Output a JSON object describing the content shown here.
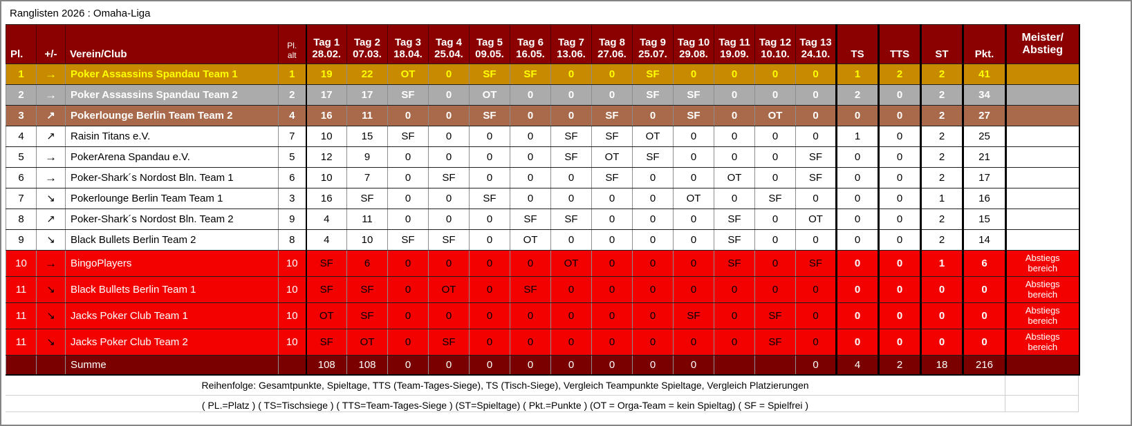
{
  "title": "Ranglisten 2026 : Omaha-Liga",
  "table": {
    "headers": {
      "pl": "Pl.",
      "change": "+/-",
      "club": "Verein/Club",
      "pl_alt": "Pl.\nalt",
      "meister": "Meister/\nAbstieg"
    },
    "stat_headers": [
      "TS",
      "TTS",
      "ST",
      "Pkt."
    ],
    "days": [
      {
        "label": "Tag 1",
        "date": "28.02."
      },
      {
        "label": "Tag 2",
        "date": "07.03."
      },
      {
        "label": "Tag 3",
        "date": "18.04."
      },
      {
        "label": "Tag 4",
        "date": "25.04."
      },
      {
        "label": "Tag 5",
        "date": "09.05."
      },
      {
        "label": "Tag 6",
        "date": "16.05."
      },
      {
        "label": "Tag 7",
        "date": "13.06."
      },
      {
        "label": "Tag 8",
        "date": "27.06."
      },
      {
        "label": "Tag 9",
        "date": "25.07."
      },
      {
        "label": "Tag 10",
        "date": "29.08."
      },
      {
        "label": "Tag 11",
        "date": "19.09."
      },
      {
        "label": "Tag 12",
        "date": "10.10."
      },
      {
        "label": "Tag 13",
        "date": "24.10."
      }
    ],
    "rows": [
      {
        "pl": "1",
        "trend": "→",
        "club": "Poker Assassins Spandau Team 1",
        "pl_alt": "1",
        "theme": "gold",
        "blue": [
          0,
          1
        ],
        "days": [
          "19",
          "22",
          "OT",
          "0",
          "SF",
          "SF",
          "0",
          "0",
          "SF",
          "0",
          "0",
          "0",
          "0"
        ],
        "ts": "1",
        "tts": "2",
        "st": "2",
        "pkt": "41",
        "note": ""
      },
      {
        "pl": "2",
        "trend": "→",
        "club": "Poker Assassins Spandau Team 2",
        "pl_alt": "2",
        "theme": "gray",
        "days": [
          "17",
          "17",
          "SF",
          "0",
          "OT",
          "0",
          "0",
          "0",
          "SF",
          "SF",
          "0",
          "0",
          "0"
        ],
        "ts": "2",
        "tts": "0",
        "st": "2",
        "pkt": "34",
        "note": ""
      },
      {
        "pl": "3",
        "trend": "↗",
        "club": "Pokerlounge Berlin Team Team 2",
        "pl_alt": "4",
        "theme": "brown",
        "days": [
          "16",
          "11",
          "0",
          "0",
          "SF",
          "0",
          "0",
          "SF",
          "0",
          "SF",
          "0",
          "OT",
          "0"
        ],
        "ts": "0",
        "tts": "0",
        "st": "2",
        "pkt": "27",
        "note": ""
      },
      {
        "pl": "4",
        "trend": "↗",
        "club": "Raisin Titans e.V.",
        "pl_alt": "7",
        "theme": "white",
        "days": [
          "10",
          "15",
          "SF",
          "0",
          "0",
          "0",
          "SF",
          "SF",
          "OT",
          "0",
          "0",
          "0",
          "0"
        ],
        "ts": "1",
        "tts": "0",
        "st": "2",
        "pkt": "25",
        "note": ""
      },
      {
        "pl": "5",
        "trend": "→",
        "club": "PokerArena Spandau e.V.",
        "pl_alt": "5",
        "theme": "white",
        "days": [
          "12",
          "9",
          "0",
          "0",
          "0",
          "0",
          "SF",
          "OT",
          "SF",
          "0",
          "0",
          "0",
          "SF"
        ],
        "ts": "0",
        "tts": "0",
        "st": "2",
        "pkt": "21",
        "note": ""
      },
      {
        "pl": "6",
        "trend": "→",
        "club": "Poker-Shark´s Nordost Bln. Team 1",
        "pl_alt": "6",
        "theme": "white",
        "days": [
          "10",
          "7",
          "0",
          "SF",
          "0",
          "0",
          "0",
          "SF",
          "0",
          "0",
          "OT",
          "0",
          "SF"
        ],
        "ts": "0",
        "tts": "0",
        "st": "2",
        "pkt": "17",
        "note": ""
      },
      {
        "pl": "7",
        "trend": "↘",
        "club": "Pokerlounge Berlin Team Team 1",
        "pl_alt": "3",
        "theme": "white",
        "days": [
          "16",
          "SF",
          "0",
          "0",
          "SF",
          "0",
          "0",
          "0",
          "0",
          "OT",
          "0",
          "SF",
          "0"
        ],
        "ts": "0",
        "tts": "0",
        "st": "1",
        "pkt": "16",
        "note": ""
      },
      {
        "pl": "8",
        "trend": "↗",
        "club": "Poker-Shark´s Nordost Bln. Team 2",
        "pl_alt": "9",
        "theme": "white",
        "days": [
          "4",
          "11",
          "0",
          "0",
          "0",
          "SF",
          "SF",
          "0",
          "0",
          "0",
          "SF",
          "0",
          "OT"
        ],
        "ts": "0",
        "tts": "0",
        "st": "2",
        "pkt": "15",
        "note": ""
      },
      {
        "pl": "9",
        "trend": "↘",
        "club": "Black Bullets Berlin Team 2",
        "pl_alt": "8",
        "theme": "white",
        "days": [
          "4",
          "10",
          "SF",
          "SF",
          "0",
          "OT",
          "0",
          "0",
          "0",
          "0",
          "SF",
          "0",
          "0"
        ],
        "ts": "0",
        "tts": "0",
        "st": "2",
        "pkt": "14",
        "note": ""
      },
      {
        "pl": "10",
        "trend": "→",
        "club": "BingoPlayers",
        "pl_alt": "10",
        "theme": "red",
        "days": [
          "SF",
          "6",
          "0",
          "0",
          "0",
          "0",
          "OT",
          "0",
          "0",
          "0",
          "SF",
          "0",
          "SF"
        ],
        "ts": "0",
        "tts": "0",
        "st": "1",
        "pkt": "6",
        "note": "Abstiegs\nbereich"
      },
      {
        "pl": "11",
        "trend": "↘",
        "club": "Black Bullets Berlin Team 1",
        "pl_alt": "10",
        "theme": "red",
        "days": [
          "SF",
          "SF",
          "0",
          "OT",
          "0",
          "SF",
          "0",
          "0",
          "0",
          "0",
          "0",
          "0",
          "0"
        ],
        "ts": "0",
        "tts": "0",
        "st": "0",
        "pkt": "0",
        "note": "Abstiegs\nbereich"
      },
      {
        "pl": "11",
        "trend": "↘",
        "club": "Jacks Poker Club Team 1",
        "pl_alt": "10",
        "theme": "red",
        "days": [
          "OT",
          "SF",
          "0",
          "0",
          "0",
          "0",
          "0",
          "0",
          "0",
          "SF",
          "0",
          "SF",
          "0"
        ],
        "ts": "0",
        "tts": "0",
        "st": "0",
        "pkt": "0",
        "note": "Abstiegs\nbereich"
      },
      {
        "pl": "11",
        "trend": "↘",
        "club": "Jacks Poker Club Team 2",
        "pl_alt": "10",
        "theme": "red",
        "days": [
          "SF",
          "OT",
          "0",
          "SF",
          "0",
          "0",
          "0",
          "0",
          "0",
          "0",
          "0",
          "SF",
          "0"
        ],
        "ts": "0",
        "tts": "0",
        "st": "0",
        "pkt": "0",
        "note": "Abstiegs\nbereich"
      }
    ],
    "summe": {
      "label": "Summe",
      "days": [
        "108",
        "108",
        "0",
        "0",
        "0",
        "0",
        "0",
        "0",
        "0",
        "0",
        "",
        "",
        "0"
      ],
      "ts": "4",
      "tts": "2",
      "st": "18",
      "pkt": "216",
      "note": ""
    },
    "footnote_order": "Reihenfolge: Gesamtpunkte, Spieltage, TTS (Team-Tages-Siege), TS (Tisch-Siege), Vergleich Teampunkte Spieltage, Vergleich Platzierungen",
    "footnote_legend": "( PL.=Platz ) ( TS=Tischsiege ) ( TTS=Team-Tages-Siege ) (ST=Spieltage) ( Pkt.=Punkte ) (OT = Orga-Team = kein Spieltag) ( SF = Spielfrei )",
    "colors": {
      "header_bg": "#8b0000",
      "gold": "#c88a00",
      "gray": "#ababab",
      "brown": "#a86a4b",
      "red": "#f30000",
      "summe_bg": "#7a0000",
      "sf_bg": "#90be7c",
      "ot_bg": "#000000",
      "blue_bg": "#0a0ae6",
      "trend_right_bg": "#f6e2b3",
      "trend_up_bg": "#c9e3d3",
      "trend_down_bg": "#f3c8c4",
      "highlight_text": "#ffff00"
    }
  }
}
